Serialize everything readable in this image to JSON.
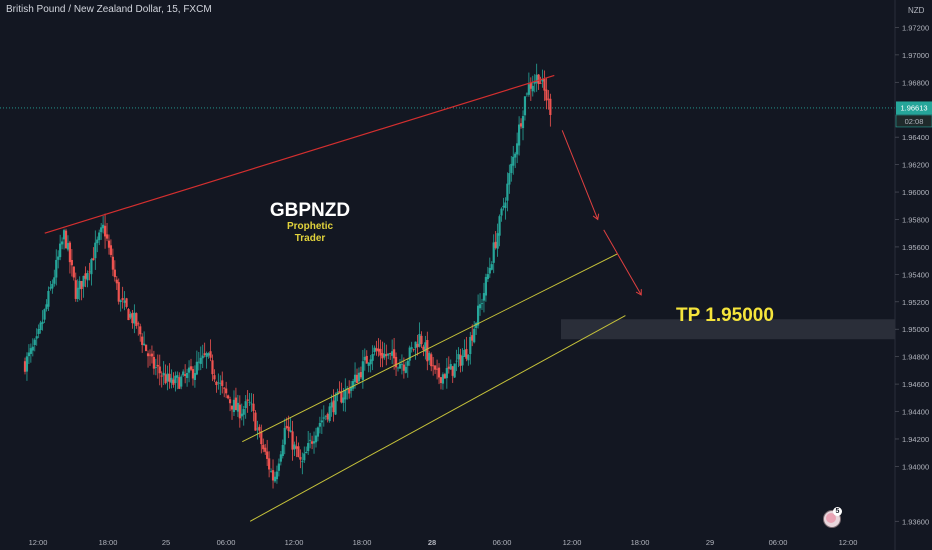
{
  "header": {
    "symbol_title": "British Pound / New Zealand Dollar, 15, FXCM"
  },
  "price_scale": {
    "currency_label": "NZD",
    "current_price": "1.96613",
    "countdown": "02:08"
  },
  "annotations": {
    "watermark_title": "GBPNZD",
    "watermark_sub1": "Prophetic",
    "watermark_sub2": "Trader",
    "tp_label": "TP 1.95000"
  },
  "badge": {
    "count": "5"
  },
  "colors": {
    "background": "#131722",
    "up_candle": "#26a69a",
    "down_candle": "#ef5350",
    "upper_trendline": "#d32f2f",
    "channel_lines": "#c6c23a",
    "watermark_sub": "#e2d33c",
    "tp_text": "#f5e43c",
    "tp_band": "#2a2e39",
    "price_tag": "#26a69a",
    "arrow": "#e04040"
  },
  "chart_data": {
    "type": "candlestick",
    "symbol": "GBPNZD",
    "timeframe": "15",
    "ylim": [
      1.935,
      1.974
    ],
    "y_ticks": [
      "1.97200",
      "1.97000",
      "1.96800",
      "1.96400",
      "1.96200",
      "1.96000",
      "1.95800",
      "1.95600",
      "1.95400",
      "1.95200",
      "1.95000",
      "1.94800",
      "1.94600",
      "1.94400",
      "1.94200",
      "1.94000",
      "1.93600"
    ],
    "x_ticks": [
      "12:00",
      "18:00",
      "25",
      "06:00",
      "12:00",
      "18:00",
      "28",
      "06:00",
      "12:00",
      "18:00",
      "29",
      "06:00",
      "12:00"
    ],
    "current_price": 1.96613,
    "take_profit": 1.95,
    "close_path": [
      {
        "t": 0,
        "p": 1.9475
      },
      {
        "t": 0.03,
        "p": 1.949
      },
      {
        "t": 0.07,
        "p": 1.9535
      },
      {
        "t": 0.1,
        "p": 1.957
      },
      {
        "t": 0.13,
        "p": 1.9525
      },
      {
        "t": 0.16,
        "p": 1.9545
      },
      {
        "t": 0.2,
        "p": 1.9575
      },
      {
        "t": 0.24,
        "p": 1.952
      },
      {
        "t": 0.28,
        "p": 1.9505
      },
      {
        "t": 0.32,
        "p": 1.9475
      },
      {
        "t": 0.37,
        "p": 1.946
      },
      {
        "t": 0.41,
        "p": 1.9465
      },
      {
        "t": 0.46,
        "p": 1.948
      },
      {
        "t": 0.5,
        "p": 1.9455
      },
      {
        "t": 0.54,
        "p": 1.944
      },
      {
        "t": 0.57,
        "p": 1.9445
      },
      {
        "t": 0.6,
        "p": 1.9415
      },
      {
        "t": 0.63,
        "p": 1.939
      },
      {
        "t": 0.66,
        "p": 1.943
      },
      {
        "t": 0.7,
        "p": 1.94
      },
      {
        "t": 0.74,
        "p": 1.943
      },
      {
        "t": 0.78,
        "p": 1.9445
      },
      {
        "t": 0.83,
        "p": 1.946
      },
      {
        "t": 0.88,
        "p": 1.9485
      },
      {
        "t": 0.92,
        "p": 1.948
      },
      {
        "t": 0.96,
        "p": 1.9475
      },
      {
        "t": 1.0,
        "p": 1.9495
      },
      {
        "t": 1.04,
        "p": 1.9465
      },
      {
        "t": 1.08,
        "p": 1.947
      },
      {
        "t": 1.12,
        "p": 1.9485
      },
      {
        "t": 1.16,
        "p": 1.9525
      },
      {
        "t": 1.2,
        "p": 1.9575
      },
      {
        "t": 1.24,
        "p": 1.963
      },
      {
        "t": 1.27,
        "p": 1.9675
      },
      {
        "t": 1.3,
        "p": 1.9685
      },
      {
        "t": 1.33,
        "p": 1.9661
      }
    ],
    "upper_trendline": {
      "from": {
        "t": 0.05,
        "p": 1.957
      },
      "to": {
        "t": 1.34,
        "p": 1.9685
      }
    },
    "channel_upper": {
      "from": {
        "t": 0.55,
        "p": 1.9418
      },
      "to": {
        "t": 1.5,
        "p": 1.9555
      }
    },
    "channel_lower": {
      "from": {
        "t": 0.57,
        "p": 1.936
      },
      "to": {
        "t": 1.52,
        "p": 1.951
      }
    },
    "forecast_arrow": [
      {
        "t": 1.36,
        "p": 1.9645
      },
      {
        "t": 1.45,
        "p": 1.958
      },
      {
        "t": 1.56,
        "p": 1.9525
      }
    ]
  }
}
